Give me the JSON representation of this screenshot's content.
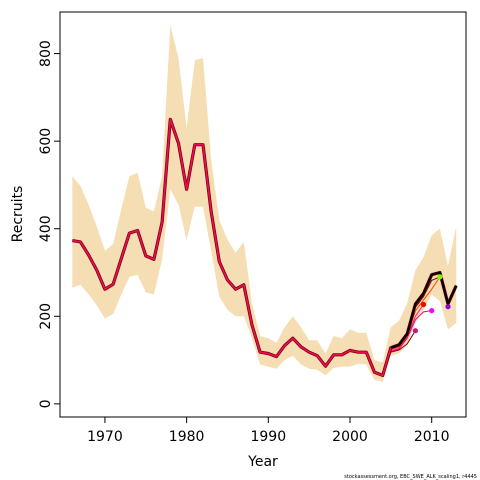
{
  "chart_data": {
    "type": "line",
    "xlabel": "Year",
    "ylabel": "Recruits",
    "xlim": [
      1964.5,
      2014.2
    ],
    "ylim": [
      -30,
      895
    ],
    "x_ticks": [
      1970,
      1980,
      1990,
      2000,
      2010
    ],
    "y_ticks": [
      0,
      200,
      400,
      600,
      800
    ],
    "grid": false,
    "footnote": "stockassessment.org, EBC_SWE_ALK_scaling1, r4445",
    "colors": {
      "band": "#f5deb3",
      "main_line": "#000000",
      "retro_lines": [
        "#8b0000",
        "#e0115f",
        "#ff1493",
        "#ff4500"
      ],
      "endpoints": [
        "#c71585",
        "#ff00ff",
        "#ff0000",
        "#7cfc00",
        "#9400d3"
      ]
    },
    "series": [
      {
        "role": "confidence_band",
        "x": [
          1966,
          1967,
          1968,
          1969,
          1970,
          1971,
          1972,
          1973,
          1974,
          1975,
          1976,
          1977,
          1978,
          1979,
          1980,
          1981,
          1982,
          1983,
          1984,
          1985,
          1986,
          1987,
          1988,
          1989,
          1990,
          1991,
          1992,
          1993,
          1994,
          1995,
          1996,
          1997,
          1998,
          1999,
          2000,
          2001,
          2002,
          2003,
          2004,
          2005,
          2006,
          2007,
          2008,
          2009,
          2010,
          2011,
          2012,
          2013
        ],
        "lower": [
          265,
          272,
          250,
          225,
          195,
          205,
          250,
          290,
          295,
          255,
          250,
          330,
          490,
          455,
          375,
          450,
          450,
          350,
          245,
          215,
          200,
          200,
          150,
          90,
          85,
          80,
          100,
          110,
          90,
          80,
          78,
          65,
          82,
          85,
          85,
          92,
          90,
          55,
          50,
          110,
          115,
          135,
          185,
          215,
          250,
          235,
          170,
          185
        ],
        "upper": [
          520,
          498,
          455,
          405,
          350,
          365,
          445,
          520,
          528,
          448,
          440,
          520,
          865,
          790,
          630,
          785,
          790,
          560,
          420,
          375,
          345,
          370,
          230,
          155,
          150,
          140,
          175,
          200,
          175,
          145,
          145,
          115,
          155,
          150,
          170,
          162,
          162,
          100,
          95,
          175,
          190,
          230,
          305,
          335,
          385,
          400,
          315,
          405
        ]
      },
      {
        "role": "main",
        "x": [
          1966,
          1967,
          1968,
          1969,
          1970,
          1971,
          1972,
          1973,
          1974,
          1975,
          1976,
          1977,
          1978,
          1979,
          1980,
          1981,
          1982,
          1983,
          1984,
          1985,
          1986,
          1987,
          1988,
          1989,
          1990,
          1991,
          1992,
          1993,
          1994,
          1995,
          1996,
          1997,
          1998,
          1999,
          2000,
          2001,
          2002,
          2003,
          2004,
          2005,
          2006,
          2007,
          2008,
          2009,
          2010,
          2011,
          2012,
          2013
        ],
        "y": [
          373,
          370,
          340,
          305,
          262,
          273,
          332,
          390,
          396,
          338,
          330,
          415,
          650,
          595,
          490,
          592,
          592,
          440,
          325,
          283,
          262,
          272,
          180,
          118,
          115,
          108,
          133,
          150,
          130,
          118,
          110,
          86,
          112,
          112,
          122,
          118,
          118,
          72,
          65,
          128,
          135,
          160,
          228,
          252,
          295,
          300,
          228,
          270
        ]
      },
      {
        "role": "retrospective",
        "x": [
          2003,
          2004,
          2005,
          2006,
          2007,
          2008
        ],
        "y": [
          72,
          64,
          118,
          123,
          137,
          167
        ]
      },
      {
        "role": "retrospective",
        "x": [
          2003,
          2004,
          2005,
          2006,
          2007,
          2008,
          2009,
          2010
        ],
        "y": [
          72,
          64,
          120,
          125,
          150,
          192,
          210,
          213
        ]
      },
      {
        "role": "retrospective",
        "x": [
          2003,
          2004,
          2005,
          2006,
          2007,
          2008,
          2009
        ],
        "y": [
          72,
          64,
          121,
          127,
          152,
          200,
          227
        ]
      },
      {
        "role": "retrospective",
        "x": [
          2003,
          2004,
          2005,
          2006,
          2007,
          2008,
          2009,
          2010,
          2011
        ],
        "y": [
          72,
          64,
          124,
          130,
          155,
          212,
          237,
          262,
          290
        ]
      },
      {
        "role": "retrospective",
        "x": [
          2003,
          2004,
          2005,
          2006,
          2007,
          2008,
          2009,
          2010,
          2011,
          2012
        ],
        "y": [
          72,
          64,
          126,
          132,
          157,
          220,
          245,
          282,
          290,
          222
        ]
      }
    ],
    "endpoints": [
      {
        "x": 2008,
        "y": 167
      },
      {
        "x": 2010,
        "y": 213
      },
      {
        "x": 2009,
        "y": 227
      },
      {
        "x": 2011,
        "y": 290
      },
      {
        "x": 2012,
        "y": 222
      }
    ]
  }
}
